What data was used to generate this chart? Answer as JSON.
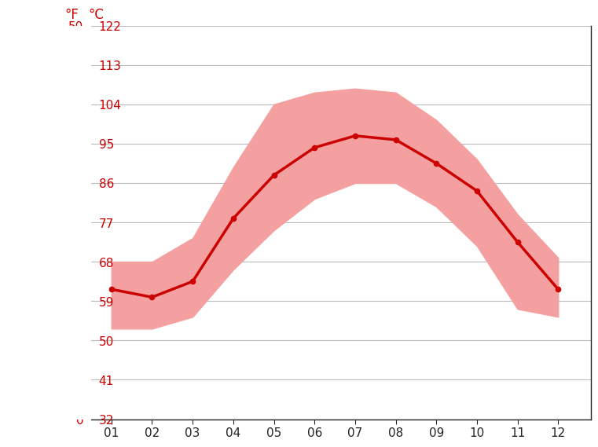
{
  "months": [
    1,
    2,
    3,
    4,
    5,
    6,
    7,
    8,
    9,
    10,
    11,
    12
  ],
  "month_labels": [
    "01",
    "02",
    "03",
    "04",
    "05",
    "06",
    "07",
    "08",
    "09",
    "10",
    "11",
    "12"
  ],
  "avg_temp_c": [
    16.5,
    15.5,
    17.5,
    25.5,
    31.0,
    34.5,
    36.0,
    35.5,
    32.5,
    29.0,
    22.5,
    16.5
  ],
  "max_temp_c": [
    20.0,
    20.0,
    23.0,
    32.0,
    40.0,
    41.5,
    42.0,
    41.5,
    38.0,
    33.0,
    26.0,
    20.5
  ],
  "min_temp_c": [
    11.5,
    11.5,
    13.0,
    19.0,
    24.0,
    28.0,
    30.0,
    30.0,
    27.0,
    22.0,
    14.0,
    13.0
  ],
  "line_color": "#cc0000",
  "fill_color": "#f4a0a0",
  "axis_color_red": "#cc0000",
  "axis_color_black": "#222222",
  "grid_color": "#bbbbbb",
  "spine_color": "#222222",
  "ylim_c": [
    0,
    50
  ],
  "yticks_c": [
    0,
    5,
    10,
    15,
    20,
    25,
    30,
    35,
    40,
    45,
    50
  ],
  "yticks_f": [
    32,
    41,
    50,
    59,
    68,
    77,
    86,
    95,
    104,
    113,
    122
  ],
  "xlim": [
    0.5,
    12.8
  ],
  "background_color": "#ffffff",
  "label_f": "°F",
  "label_c": "°C",
  "fontsize_ticks": 11,
  "fontsize_labels": 12
}
